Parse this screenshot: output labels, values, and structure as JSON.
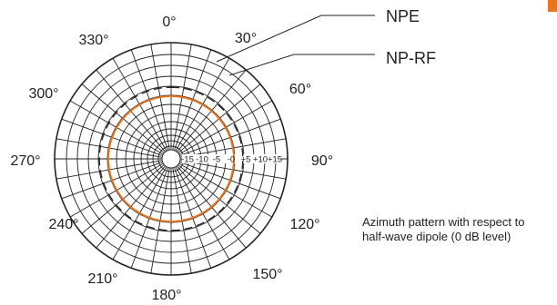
{
  "chart_data": {
    "type": "polar",
    "angle_labels": [
      "0°",
      "30°",
      "60°",
      "90°",
      "120°",
      "150°",
      "180°",
      "210°",
      "240°",
      "270°",
      "300°",
      "330°"
    ],
    "radial_tick_labels": [
      "-15",
      "-10",
      "-5",
      "-0",
      "+5",
      "+10",
      "+15"
    ],
    "radial_range": [
      -15,
      15
    ],
    "grid": true,
    "series": [
      {
        "name": "NPE",
        "style": "dashed",
        "color": "#222222",
        "values_db": [
          2.5,
          2.5,
          2.5,
          2.5,
          2.5,
          2.5,
          2.5,
          2.5,
          2.5,
          2.5,
          2.5,
          2.5
        ]
      },
      {
        "name": "NP-RF",
        "style": "solid",
        "color": "#e8761e",
        "values_db": [
          0,
          0,
          0,
          0,
          0,
          0,
          0,
          0,
          0,
          0,
          0,
          0
        ]
      }
    ]
  },
  "caption": {
    "line1": "Azimuth pattern with respect to",
    "line2": "half-wave dipole (0 dB level)"
  },
  "colors": {
    "grid": "#222222",
    "accent": "#e8761e"
  }
}
